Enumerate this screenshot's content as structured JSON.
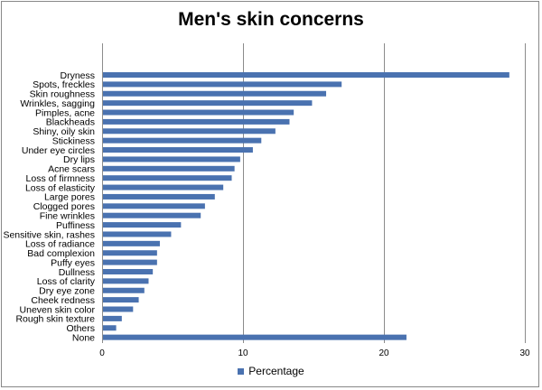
{
  "chart_data": {
    "type": "bar",
    "orientation": "horizontal",
    "title": "Men's skin concerns",
    "categories": [
      "Dryness",
      "Spots, freckles",
      "Skin roughness",
      "Wrinkles, sagging",
      "Pimples, acne",
      "Blackheads",
      "Shiny, oily skin",
      "Stickiness",
      "Under eye circles",
      "Dry lips",
      "Acne scars",
      "Loss of firmness",
      "Loss of elasticity",
      "Large pores",
      "Clogged pores",
      "Fine wrinkles",
      "Puffiness",
      "Sensitive skin, rashes",
      "Loss of radiance",
      "Bad complexion",
      "Puffy eyes",
      "Dullness",
      "Loss of clarity",
      "Dry eye zone",
      "Cheek redness",
      "Uneven skin color",
      "Rough skin texture",
      "Others",
      "None"
    ],
    "series": [
      {
        "name": "Percentage",
        "values": [
          28.9,
          17.0,
          15.9,
          14.9,
          13.6,
          13.3,
          12.3,
          11.3,
          10.7,
          9.8,
          9.4,
          9.2,
          8.6,
          8.0,
          7.3,
          7.0,
          5.6,
          4.9,
          4.1,
          3.9,
          3.9,
          3.6,
          3.3,
          3.0,
          2.6,
          2.2,
          1.4,
          1.0,
          21.6
        ]
      }
    ],
    "xlim": [
      0,
      30
    ],
    "xticks": [
      0,
      10,
      20,
      30
    ],
    "grid": true,
    "legend": "bottom",
    "bar_color": "#4a72b0"
  }
}
